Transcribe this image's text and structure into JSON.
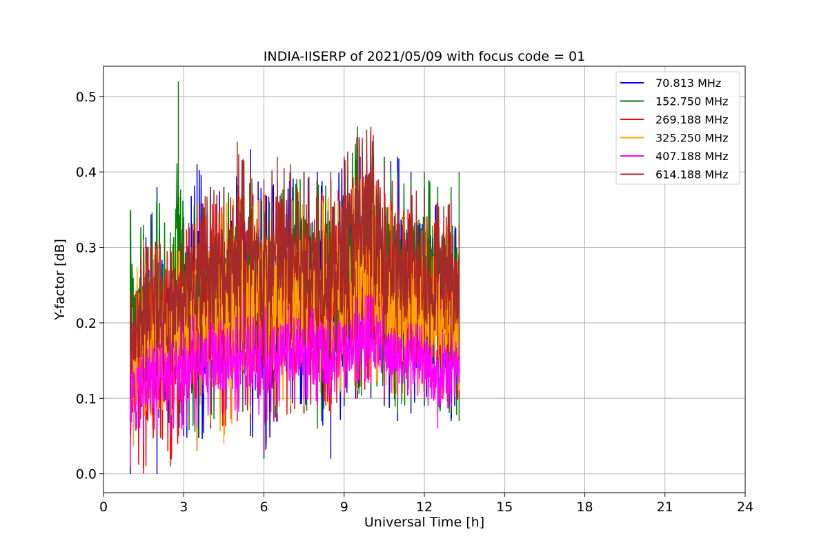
{
  "chart_data": {
    "type": "line",
    "title": "INDIA-IISERP of 2021/05/09 with focus code = 01",
    "xlabel": "Universal Time [h]",
    "ylabel": "Y-factor [dB]",
    "xlim": [
      0,
      24
    ],
    "ylim": [
      -0.025,
      0.54
    ],
    "xticks": [
      0,
      3,
      6,
      9,
      12,
      15,
      18,
      21,
      24
    ],
    "yticks": [
      0.0,
      0.1,
      0.2,
      0.3,
      0.4,
      0.5
    ],
    "ytick_labels": [
      "0.0",
      "0.1",
      "0.2",
      "0.3",
      "0.4",
      "0.5"
    ],
    "grid": true,
    "legend_position": "top-right",
    "series": [
      {
        "name": " 70.813 MHz",
        "color": "#0000ff",
        "x": [
          1.0,
          1.5,
          2.0,
          2.5,
          3.0,
          3.5,
          4.0,
          4.5,
          5.0,
          5.5,
          6.0,
          6.5,
          7.0,
          7.5,
          8.0,
          8.5,
          9.0,
          9.5,
          10.0,
          10.5,
          11.0,
          11.5,
          12.0,
          12.5,
          13.0,
          13.3
        ],
        "low": [
          0.0,
          0.05,
          0.0,
          0.07,
          0.05,
          0.03,
          0.07,
          0.08,
          0.07,
          0.05,
          0.02,
          0.07,
          0.08,
          0.08,
          0.09,
          0.02,
          0.09,
          0.1,
          0.1,
          0.09,
          0.07,
          0.08,
          0.09,
          0.1,
          0.07,
          0.1
        ],
        "high": [
          0.24,
          0.31,
          0.38,
          0.28,
          0.34,
          0.41,
          0.38,
          0.38,
          0.4,
          0.43,
          0.37,
          0.39,
          0.39,
          0.4,
          0.4,
          0.39,
          0.42,
          0.43,
          0.42,
          0.42,
          0.42,
          0.4,
          0.38,
          0.36,
          0.37,
          0.3
        ]
      },
      {
        "name": "152.750 MHz",
        "color": "#008000",
        "x": [
          1.0,
          1.5,
          2.0,
          2.5,
          2.8,
          3.0,
          3.5,
          4.0,
          4.5,
          5.0,
          5.5,
          6.0,
          6.5,
          7.0,
          7.5,
          8.0,
          8.5,
          9.0,
          9.5,
          10.0,
          10.5,
          11.0,
          11.5,
          12.0,
          12.5,
          13.0,
          13.3
        ],
        "low": [
          0.02,
          0.05,
          0.06,
          0.07,
          0.07,
          0.07,
          0.04,
          0.07,
          0.08,
          0.08,
          0.07,
          0.06,
          0.08,
          0.09,
          0.08,
          0.06,
          0.09,
          0.1,
          0.1,
          0.11,
          0.1,
          0.08,
          0.09,
          0.09,
          0.08,
          0.08,
          0.07
        ],
        "high": [
          0.35,
          0.33,
          0.37,
          0.32,
          0.52,
          0.34,
          0.36,
          0.37,
          0.38,
          0.39,
          0.4,
          0.37,
          0.38,
          0.39,
          0.4,
          0.39,
          0.39,
          0.41,
          0.46,
          0.44,
          0.42,
          0.4,
          0.39,
          0.4,
          0.38,
          0.38,
          0.4
        ]
      },
      {
        "name": "269.188 MHz",
        "color": "#ff0000",
        "x": [
          1.0,
          1.5,
          2.0,
          2.5,
          3.0,
          3.5,
          4.0,
          4.5,
          5.0,
          5.5,
          6.0,
          6.5,
          7.0,
          7.5,
          8.0,
          8.5,
          9.0,
          9.5,
          10.0,
          10.5,
          11.0,
          11.5,
          12.0,
          12.5,
          13.0,
          13.3
        ],
        "low": [
          0.01,
          0.0,
          0.05,
          0.01,
          0.06,
          0.03,
          0.06,
          0.06,
          0.07,
          0.07,
          0.03,
          0.07,
          0.08,
          0.08,
          0.09,
          0.08,
          0.1,
          0.1,
          0.12,
          0.1,
          0.1,
          0.1,
          0.1,
          0.1,
          0.09,
          0.1
        ],
        "high": [
          0.22,
          0.28,
          0.3,
          0.3,
          0.32,
          0.34,
          0.36,
          0.36,
          0.38,
          0.38,
          0.37,
          0.37,
          0.38,
          0.38,
          0.37,
          0.38,
          0.38,
          0.4,
          0.41,
          0.38,
          0.36,
          0.35,
          0.34,
          0.34,
          0.34,
          0.32
        ]
      },
      {
        "name": "325.250 MHz",
        "color": "#ffa500",
        "x": [
          1.0,
          1.5,
          2.0,
          2.5,
          3.0,
          3.5,
          4.0,
          4.5,
          5.0,
          5.5,
          6.0,
          6.5,
          7.0,
          7.5,
          8.0,
          8.5,
          9.0,
          9.5,
          10.0,
          10.5,
          11.0,
          11.5,
          12.0,
          12.5,
          13.0,
          13.3
        ],
        "low": [
          0.02,
          0.07,
          0.08,
          0.07,
          0.07,
          0.03,
          0.07,
          0.04,
          0.08,
          0.08,
          0.08,
          0.08,
          0.09,
          0.09,
          0.1,
          0.1,
          0.11,
          0.11,
          0.12,
          0.11,
          0.1,
          0.1,
          0.1,
          0.1,
          0.09,
          0.11
        ],
        "high": [
          0.24,
          0.31,
          0.3,
          0.3,
          0.3,
          0.33,
          0.35,
          0.36,
          0.37,
          0.37,
          0.36,
          0.36,
          0.37,
          0.37,
          0.36,
          0.37,
          0.37,
          0.39,
          0.4,
          0.37,
          0.35,
          0.34,
          0.33,
          0.33,
          0.33,
          0.31
        ]
      },
      {
        "name": "407.188 MHz",
        "color": "#ff00ff",
        "x": [
          1.0,
          1.5,
          2.0,
          2.5,
          3.0,
          3.5,
          4.0,
          4.5,
          5.0,
          5.5,
          6.0,
          6.5,
          7.0,
          7.5,
          8.0,
          8.5,
          9.0,
          9.5,
          10.0,
          10.5,
          11.0,
          11.5,
          12.0,
          12.5,
          13.0,
          13.3
        ],
        "low": [
          0.01,
          0.04,
          0.06,
          0.05,
          0.06,
          0.06,
          0.08,
          0.08,
          0.08,
          0.09,
          0.06,
          0.09,
          0.1,
          0.1,
          0.09,
          0.1,
          0.11,
          0.12,
          0.12,
          0.11,
          0.1,
          0.1,
          0.1,
          0.06,
          0.09,
          0.12
        ],
        "high": [
          0.18,
          0.2,
          0.21,
          0.2,
          0.22,
          0.21,
          0.23,
          0.23,
          0.24,
          0.24,
          0.23,
          0.22,
          0.23,
          0.23,
          0.22,
          0.22,
          0.23,
          0.24,
          0.24,
          0.22,
          0.21,
          0.2,
          0.2,
          0.19,
          0.19,
          0.17
        ]
      },
      {
        "name": "614.188 MHz",
        "color": "#a52a2a",
        "x": [
          1.0,
          1.5,
          2.0,
          2.5,
          3.0,
          3.5,
          4.0,
          4.5,
          5.0,
          5.5,
          6.0,
          6.5,
          7.0,
          7.5,
          8.0,
          8.5,
          9.0,
          9.5,
          10.0,
          10.5,
          11.0,
          11.5,
          12.0,
          12.5,
          13.0,
          13.3
        ],
        "low": [
          0.1,
          0.12,
          0.13,
          0.13,
          0.15,
          0.14,
          0.15,
          0.15,
          0.16,
          0.16,
          0.14,
          0.16,
          0.17,
          0.17,
          0.16,
          0.15,
          0.17,
          0.18,
          0.18,
          0.17,
          0.16,
          0.16,
          0.16,
          0.15,
          0.15,
          0.15
        ],
        "high": [
          0.24,
          0.3,
          0.31,
          0.3,
          0.33,
          0.36,
          0.38,
          0.38,
          0.44,
          0.4,
          0.39,
          0.42,
          0.41,
          0.4,
          0.39,
          0.4,
          0.42,
          0.45,
          0.46,
          0.41,
          0.39,
          0.38,
          0.37,
          0.36,
          0.36,
          0.33
        ]
      }
    ]
  }
}
